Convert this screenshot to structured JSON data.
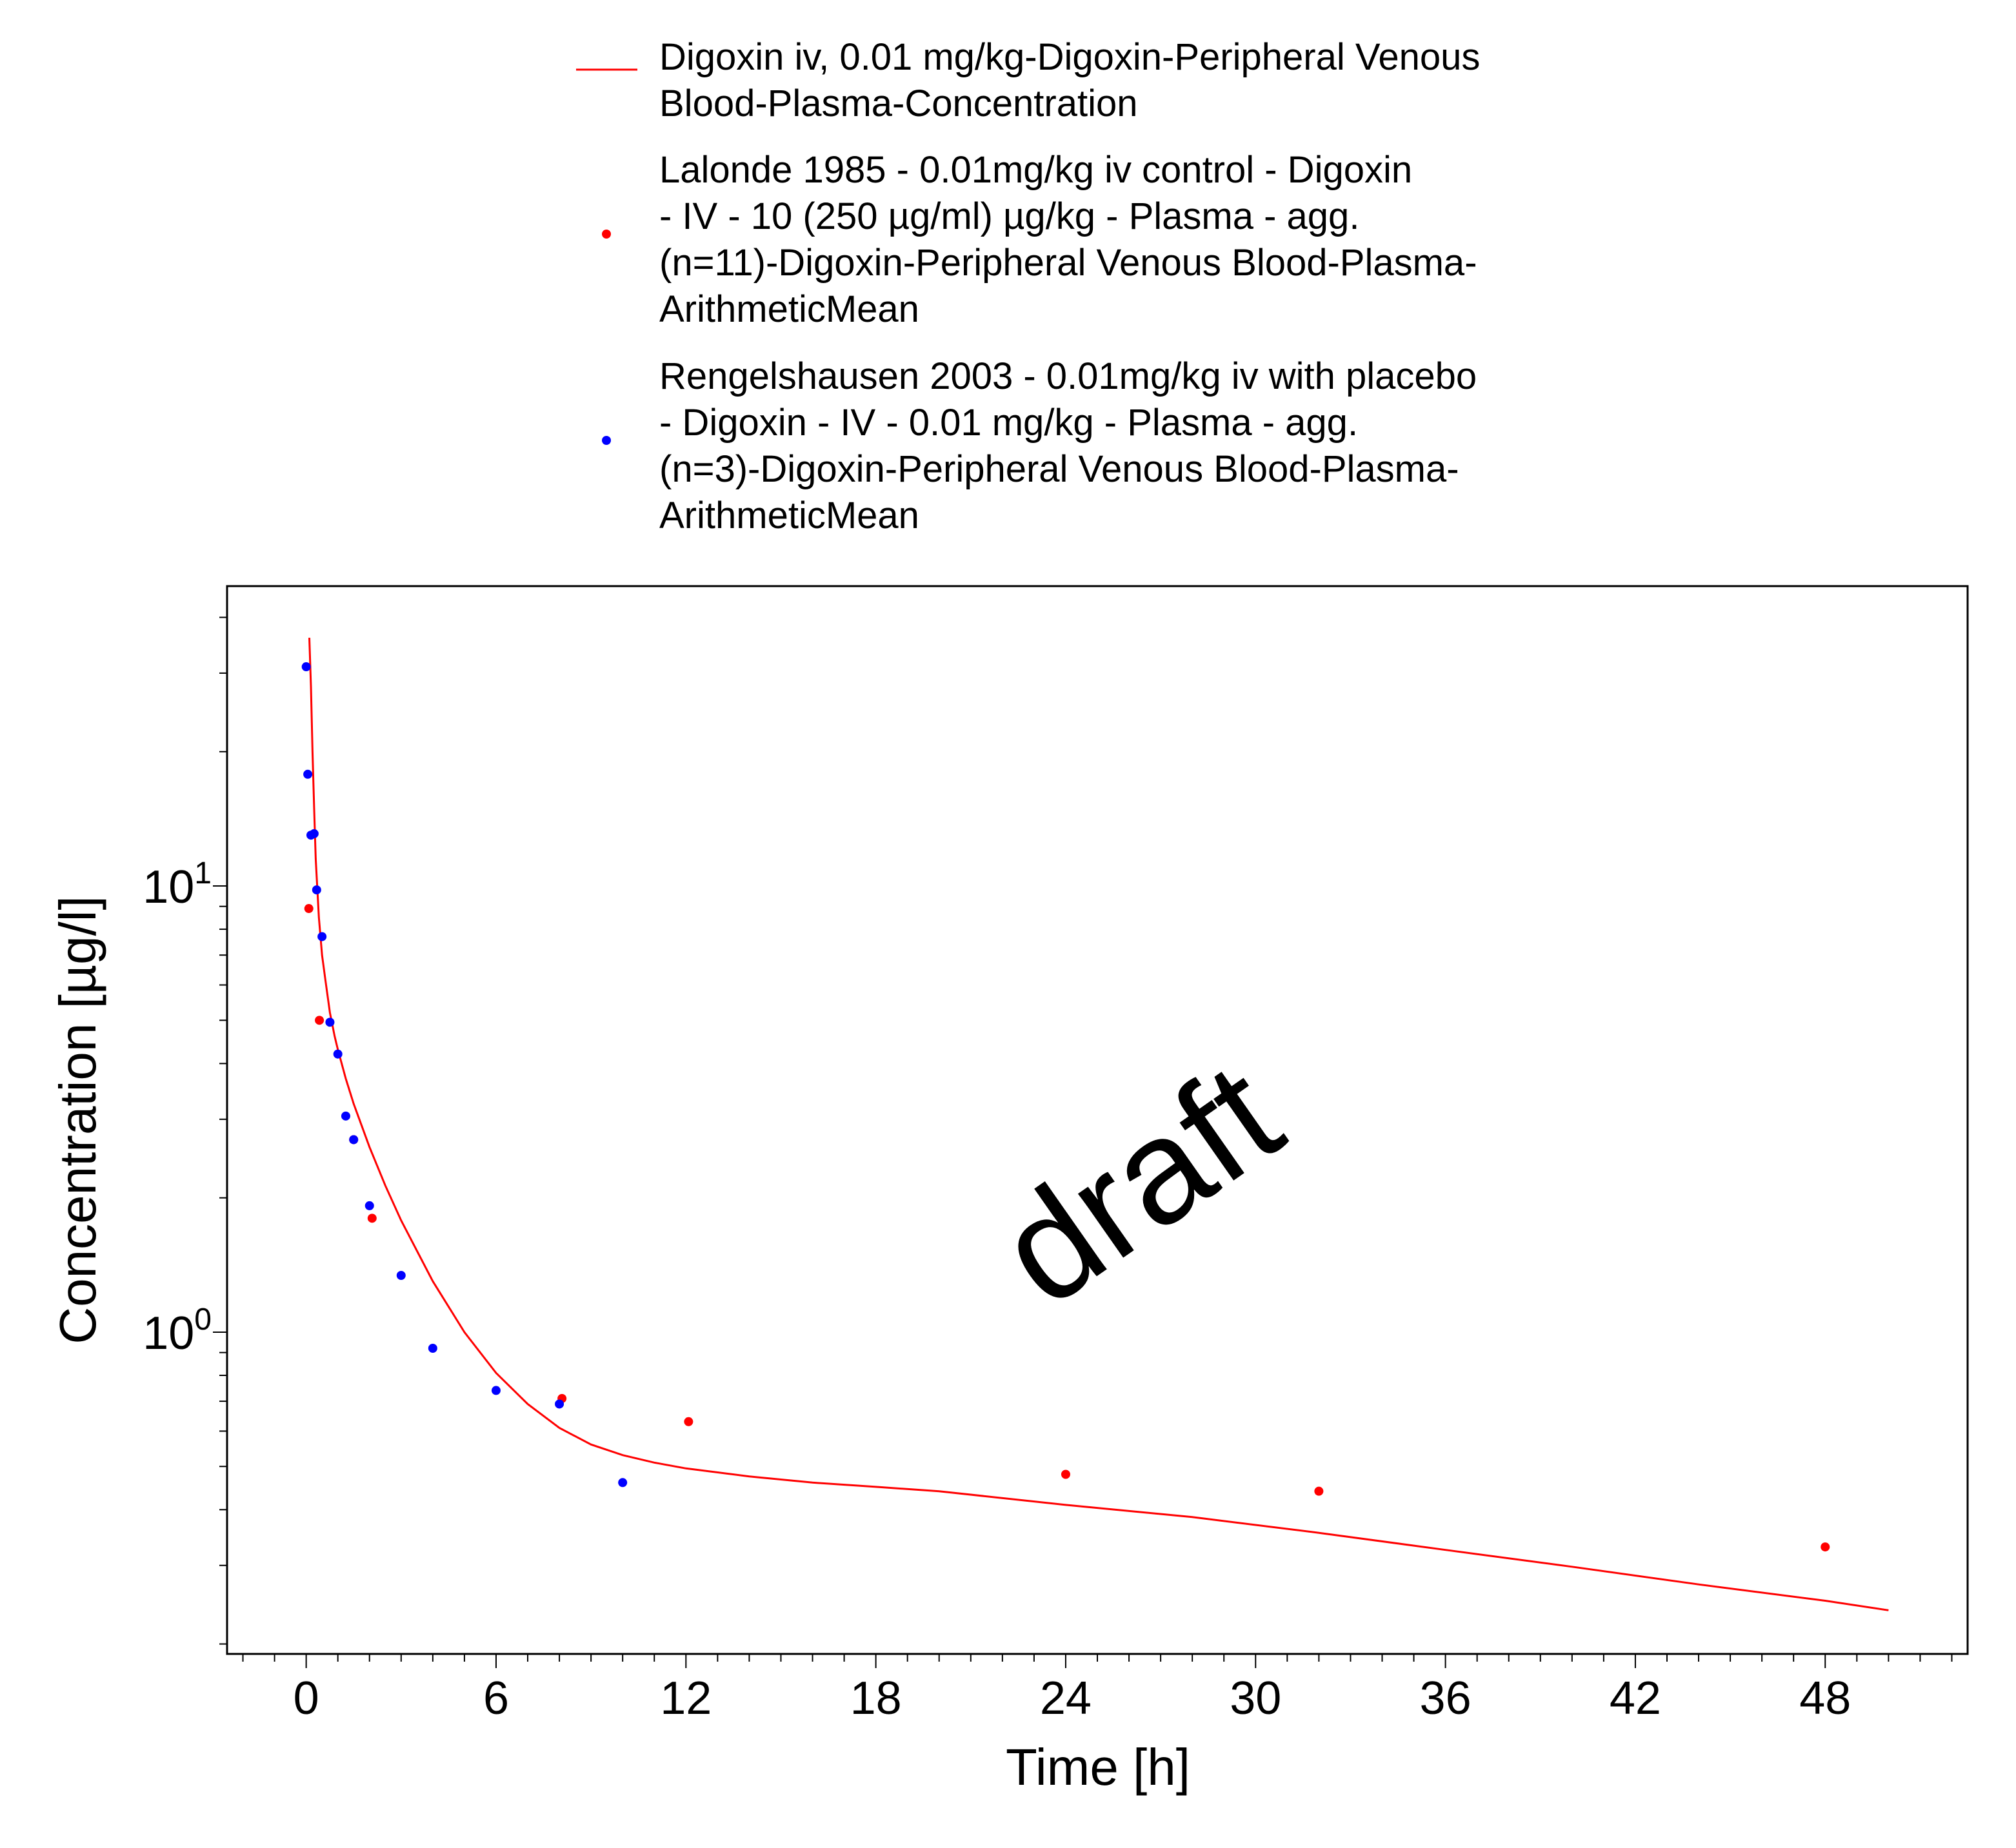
{
  "chart_data": {
    "type": "scatter",
    "title": "",
    "xlabel": "Time [h]",
    "ylabel": "Concentration [µg/l]",
    "xlim": [
      -2.5,
      52.5
    ],
    "ylim": [
      0.19,
      47
    ],
    "yscale": "log",
    "xticks": [
      0,
      6,
      12,
      18,
      24,
      30,
      36,
      42,
      48
    ],
    "yticks": [
      {
        "value": 1,
        "base": "10",
        "exponent": "0"
      },
      {
        "value": 10,
        "base": "10",
        "exponent": "1"
      }
    ],
    "grid": false,
    "legend_position": "top",
    "watermark": "draft",
    "series": [
      {
        "name": "Digoxin iv, 0.01 mg/kg-Digoxin-Peripheral Venous Blood-Plasma-Concentration",
        "legend_lines": [
          "Digoxin iv, 0.01 mg/kg-Digoxin-Peripheral Venous",
          "Blood-Plasma-Concentration"
        ],
        "type": "line",
        "color": "#ff0000",
        "x": [
          0.1,
          0.15,
          0.2,
          0.25,
          0.3,
          0.4,
          0.5,
          0.6,
          0.75,
          0.9,
          1.0,
          1.25,
          1.5,
          2.0,
          2.5,
          3.0,
          4.0,
          5.0,
          6.0,
          7.0,
          8.0,
          9.0,
          10.0,
          11.0,
          12.0,
          14.0,
          16.0,
          18.0,
          20.0,
          24.0,
          28.0,
          32.0,
          36.0,
          40.0,
          44.0,
          48.0,
          50.0
        ],
        "y": [
          36,
          28,
          20,
          15,
          11.5,
          8.5,
          7.0,
          6.2,
          5.2,
          4.6,
          4.3,
          3.7,
          3.25,
          2.6,
          2.13,
          1.78,
          1.3,
          1.0,
          0.81,
          0.69,
          0.61,
          0.56,
          0.53,
          0.51,
          0.495,
          0.475,
          0.46,
          0.45,
          0.44,
          0.41,
          0.385,
          0.355,
          0.325,
          0.298,
          0.272,
          0.25,
          0.238
        ]
      },
      {
        "name": "Lalonde 1985 - 0.01mg/kg iv control - Digoxin - IV - 10 (250 µg/ml) µg/kg - Plasma - agg. (n=11)-Digoxin-Peripheral Venous Blood-Plasma-ArithmeticMean",
        "legend_lines": [
          "Lalonde 1985 - 0.01mg/kg iv control - Digoxin",
          "- IV - 10 (250 µg/ml) µg/kg - Plasma - agg.",
          "(n=11)-Digoxin-Peripheral Venous Blood-Plasma-",
          "ArithmeticMean"
        ],
        "type": "scatter",
        "color": "#ff0000",
        "x": [
          0.083,
          0.417,
          1.5,
          2.083,
          8.083,
          12.083,
          24.0,
          32.0,
          48.0
        ],
        "y": [
          8.9,
          5.0,
          2.7,
          1.8,
          0.71,
          0.63,
          0.48,
          0.44,
          0.33
        ]
      },
      {
        "name": "Rengelshausen 2003 - 0.01mg/kg iv with placebo - Digoxin - IV - 0.01 mg/kg - Plasma - agg. (n=3)-Digoxin-Peripheral Venous Blood-Plasma-ArithmeticMean",
        "legend_lines": [
          "Rengelshausen 2003 - 0.01mg/kg iv with placebo",
          "- Digoxin - IV - 0.01 mg/kg - Plasma - agg.",
          "(n=3)-Digoxin-Peripheral Venous Blood-Plasma-",
          "ArithmeticMean"
        ],
        "type": "scatter",
        "color": "#0000ff",
        "x": [
          0.0,
          0.05,
          0.15,
          0.25,
          0.33,
          0.5,
          0.75,
          1.0,
          1.25,
          1.5,
          2.0,
          3.0,
          4.0,
          6.0,
          8.0,
          10.0
        ],
        "y": [
          31,
          17.8,
          13.0,
          13.1,
          9.8,
          7.7,
          4.95,
          4.2,
          3.05,
          2.7,
          1.92,
          1.34,
          0.92,
          0.74,
          0.69,
          0.46
        ]
      }
    ]
  }
}
